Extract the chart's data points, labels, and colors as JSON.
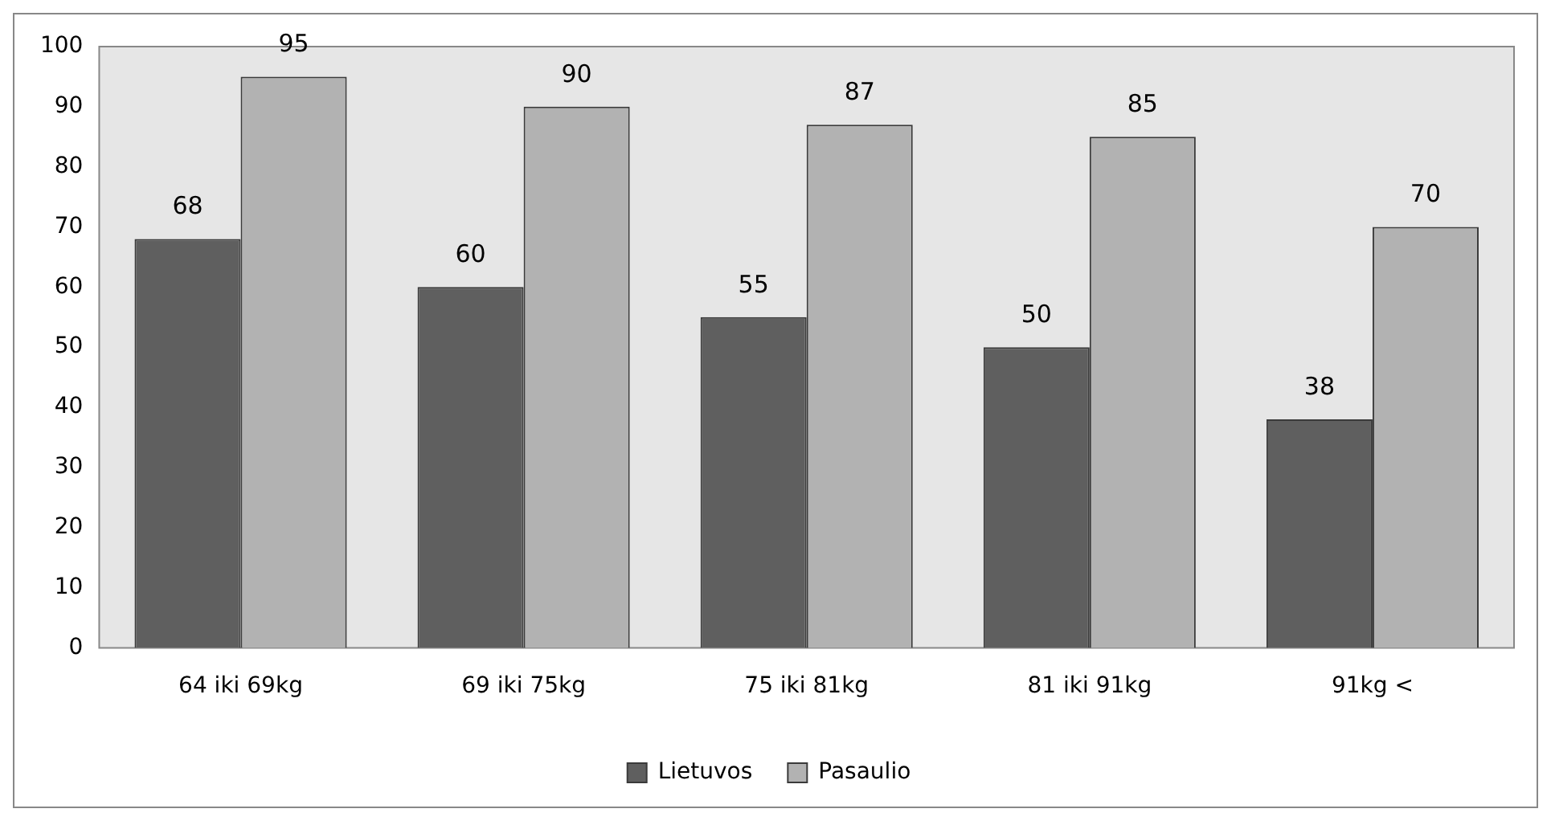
{
  "chart_data": {
    "type": "bar",
    "categories": [
      "64 iki 69kg",
      "69 iki 75kg",
      "75 iki 81kg",
      "81 iki 91kg",
      "91kg <"
    ],
    "series": [
      {
        "name": "Lietuvos",
        "color": "#5f5f5f",
        "values": [
          68,
          60,
          55,
          50,
          38
        ]
      },
      {
        "name": "Pasaulio",
        "color": "#b2b2b2",
        "values": [
          95,
          90,
          87,
          85,
          70
        ]
      }
    ],
    "ylim": [
      0,
      100
    ],
    "yticks": [
      0,
      10,
      20,
      30,
      40,
      50,
      60,
      70,
      80,
      90,
      100
    ],
    "grid": false,
    "legend": "bottom",
    "data_labels": true
  }
}
